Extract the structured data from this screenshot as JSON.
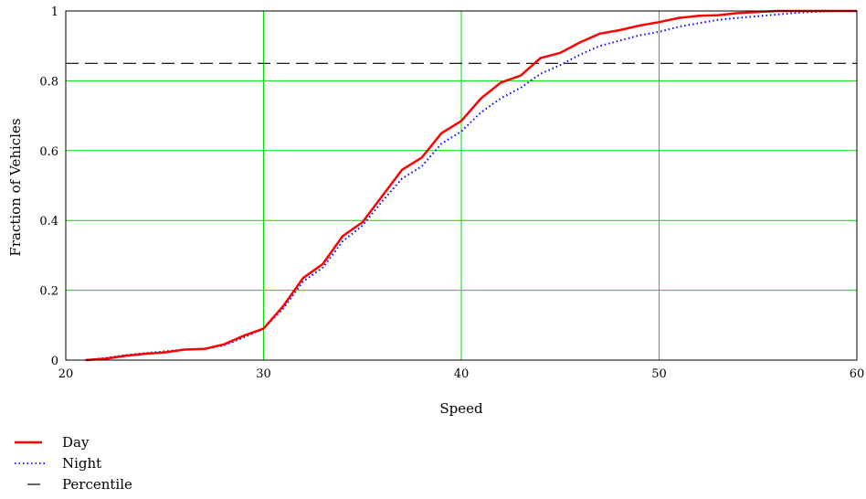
{
  "chart_data": {
    "type": "line",
    "title": "",
    "xlabel": "Speed",
    "ylabel": "Fraction of Vehicles",
    "xlim": [
      20,
      60
    ],
    "ylim": [
      0,
      1
    ],
    "xticks": [
      "20",
      "30",
      "40",
      "50",
      "60"
    ],
    "yticks": [
      "0",
      "0.2",
      "0.4",
      "0.6",
      "0.8",
      "1"
    ],
    "grid": true,
    "legend_position": "bottom-left",
    "series": [
      {
        "name": "Day",
        "color": "#ff0000",
        "style": "solid",
        "x": [
          21,
          22,
          23,
          24,
          25,
          26,
          27,
          28,
          29,
          30,
          31,
          32,
          33,
          34,
          35,
          36,
          37,
          38,
          39,
          40,
          41,
          42,
          43,
          44,
          45,
          46,
          47,
          48,
          49,
          50,
          51,
          52,
          53,
          54,
          55,
          56,
          57,
          58,
          59,
          60
        ],
        "y": [
          0.0,
          0.004,
          0.012,
          0.018,
          0.022,
          0.03,
          0.032,
          0.045,
          0.07,
          0.09,
          0.155,
          0.235,
          0.275,
          0.355,
          0.395,
          0.47,
          0.545,
          0.58,
          0.65,
          0.685,
          0.75,
          0.795,
          0.815,
          0.865,
          0.88,
          0.91,
          0.935,
          0.945,
          0.958,
          0.968,
          0.98,
          0.986,
          0.988,
          0.994,
          0.997,
          1.0,
          1.0,
          1.0,
          1.0,
          1.0
        ]
      },
      {
        "name": "Night",
        "color": "#0000ff",
        "style": "dotted",
        "x": [
          21,
          22,
          23,
          24,
          25,
          26,
          27,
          28,
          29,
          30,
          31,
          32,
          33,
          34,
          35,
          36,
          37,
          38,
          39,
          40,
          41,
          42,
          43,
          44,
          45,
          46,
          47,
          48,
          49,
          50,
          51,
          52,
          53,
          54,
          55,
          56,
          57,
          58,
          59,
          60
        ],
        "y": [
          0.0,
          0.006,
          0.014,
          0.02,
          0.025,
          0.03,
          0.032,
          0.042,
          0.065,
          0.09,
          0.148,
          0.225,
          0.265,
          0.34,
          0.385,
          0.455,
          0.52,
          0.555,
          0.62,
          0.655,
          0.71,
          0.75,
          0.78,
          0.82,
          0.845,
          0.875,
          0.9,
          0.915,
          0.93,
          0.94,
          0.955,
          0.965,
          0.975,
          0.98,
          0.985,
          0.99,
          0.995,
          0.998,
          1.0,
          1.0
        ]
      },
      {
        "name": "Percentile",
        "color": "#000000",
        "style": "dashed",
        "x": [
          20,
          60
        ],
        "y": [
          0.85,
          0.85
        ]
      }
    ]
  }
}
